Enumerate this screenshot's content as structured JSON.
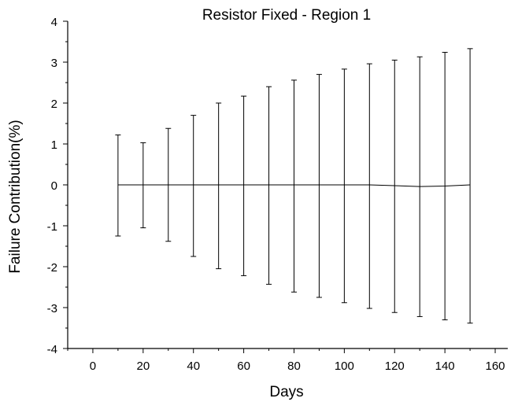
{
  "chart_data": {
    "type": "line",
    "title": "Resistor Fixed - Region 1",
    "xlabel": "Days",
    "ylabel": "Failure Contribution(%)",
    "xlim": [
      -10,
      165
    ],
    "ylim": [
      -4,
      4
    ],
    "xticks": [
      0,
      20,
      40,
      60,
      80,
      100,
      120,
      140,
      160
    ],
    "xtick_labels": [
      "0",
      "20",
      "40",
      "60",
      "80",
      "100",
      "120",
      "140",
      "160"
    ],
    "yticks": [
      -4,
      -3,
      -2,
      -1,
      0,
      1,
      2,
      3,
      4
    ],
    "ytick_labels": [
      "-4",
      "-3",
      "-2",
      "-1",
      "0",
      "1",
      "2",
      "3",
      "4"
    ],
    "grid": false,
    "legend": "none",
    "x": [
      10,
      20,
      30,
      40,
      50,
      60,
      70,
      80,
      90,
      100,
      110,
      120,
      130,
      140,
      150
    ],
    "series": [
      {
        "mean": [
          0,
          0,
          0,
          0,
          0,
          0,
          0,
          0,
          0,
          0,
          0,
          -0.02,
          -0.04,
          -0.03,
          0
        ],
        "upper": [
          1.22,
          1.03,
          1.38,
          1.7,
          2.0,
          2.17,
          2.4,
          2.56,
          2.7,
          2.83,
          2.96,
          3.05,
          3.13,
          3.24,
          3.33
        ],
        "lower": [
          -1.25,
          -1.05,
          -1.38,
          -1.75,
          -2.05,
          -2.22,
          -2.43,
          -2.62,
          -2.75,
          -2.88,
          -3.02,
          -3.12,
          -3.22,
          -3.3,
          -3.38
        ]
      }
    ]
  }
}
